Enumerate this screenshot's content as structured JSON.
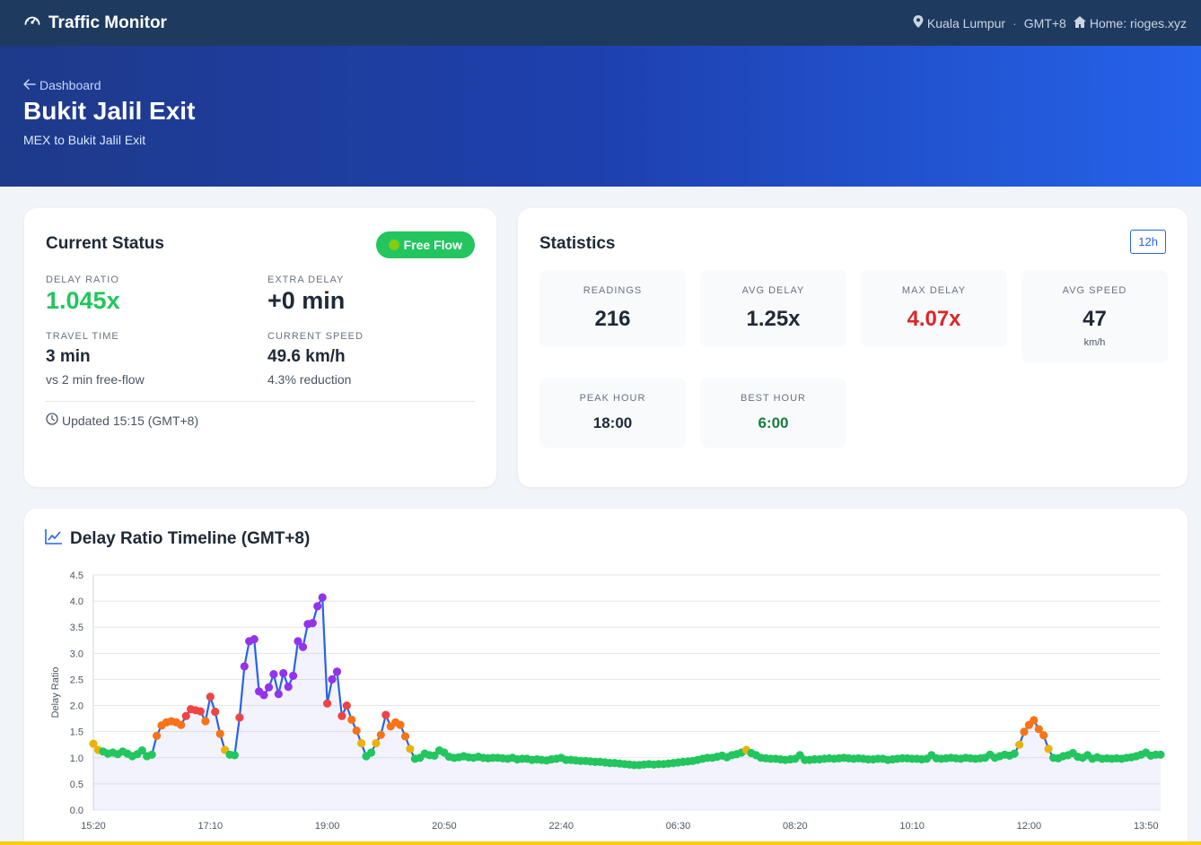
{
  "app": {
    "title": "Traffic Monitor",
    "location": "Kuala Lumpur",
    "timezone": "GMT+8",
    "home_link": "Home: rioges.xyz",
    "separator": "·"
  },
  "hero": {
    "back_label": "Dashboard",
    "title": "Bukit Jalil Exit",
    "subtitle": "MEX to Bukit Jalil Exit"
  },
  "status": {
    "title": "Current Status",
    "badge": "Free Flow",
    "delay_ratio_label": "DELAY RATIO",
    "delay_ratio": "1.045x",
    "extra_delay_label": "EXTRA DELAY",
    "extra_delay": "+0 min",
    "travel_time_label": "TRAVEL TIME",
    "travel_time": "3 min",
    "travel_time_note": "vs 2 min free-flow",
    "speed_label": "CURRENT SPEED",
    "speed": "49.6 km/h",
    "speed_note": "4.3% reduction",
    "updated": "Updated 15:15 (GMT+8)"
  },
  "stats": {
    "title": "Statistics",
    "range": "12h",
    "readings_label": "READINGS",
    "readings": "216",
    "avg_delay_label": "AVG DELAY",
    "avg_delay": "1.25x",
    "max_delay_label": "MAX DELAY",
    "max_delay": "4.07x",
    "avg_speed_label": "AVG SPEED",
    "avg_speed": "47",
    "avg_speed_unit": "km/h",
    "peak_hour_label": "PEAK HOUR",
    "peak_hour": "18:00",
    "best_hour_label": "BEST HOUR",
    "best_hour": "6:00"
  },
  "colors": {
    "free": "#22c55e",
    "light": "#eab308",
    "moderate": "#f97316",
    "heavy": "#ef4444",
    "severe": "#9333ea",
    "line": "#2563eb"
  },
  "chart_data": {
    "type": "line",
    "title": "Delay Ratio Timeline (GMT+8)",
    "ylabel": "Delay Ratio",
    "xlabel": "",
    "ylim": [
      0,
      4.5
    ],
    "yticks": [
      "0.0",
      "0.5",
      "1.0",
      "1.5",
      "2.0",
      "2.5",
      "3.0",
      "3.5",
      "4.0",
      "4.5"
    ],
    "xticks": [
      "15:20",
      "17:10",
      "19:00",
      "20:50",
      "22:40",
      "06:30",
      "08:20",
      "10:10",
      "12:00",
      "13:50"
    ],
    "grid": true,
    "legend": "none",
    "values": [
      1.27,
      1.15,
      1.12,
      1.08,
      1.1,
      1.07,
      1.12,
      1.08,
      1.03,
      1.07,
      1.14,
      1.03,
      1.06,
      1.42,
      1.62,
      1.68,
      1.7,
      1.68,
      1.63,
      1.8,
      1.93,
      1.91,
      1.89,
      1.7,
      2.17,
      1.88,
      1.46,
      1.15,
      1.06,
      1.05,
      1.77,
      2.75,
      3.23,
      3.27,
      2.27,
      2.2,
      2.35,
      2.6,
      2.22,
      2.62,
      2.36,
      2.57,
      3.23,
      3.12,
      3.56,
      3.58,
      3.9,
      4.07,
      2.04,
      2.5,
      2.65,
      1.8,
      2.0,
      1.73,
      1.52,
      1.28,
      1.03,
      1.1,
      1.28,
      1.44,
      1.82,
      1.6,
      1.68,
      1.63,
      1.41,
      1.17,
      0.98,
      1.0,
      1.08,
      1.05,
      1.04,
      1.14,
      1.1,
      1.02,
      1.0,
      1.01,
      1.03,
      1.01,
      1.0,
      1.02,
      1.0,
      0.99,
      1.0,
      1.0,
      0.99,
      0.98,
      1.0,
      0.97,
      0.98,
      0.98,
      0.96,
      0.97,
      0.96,
      0.95,
      0.97,
      0.98,
      1.0,
      0.96,
      0.96,
      0.95,
      0.94,
      0.94,
      0.93,
      0.92,
      0.92,
      0.91,
      0.9,
      0.9,
      0.89,
      0.88,
      0.87,
      0.86,
      0.86,
      0.87,
      0.88,
      0.87,
      0.88,
      0.88,
      0.89,
      0.9,
      0.91,
      0.92,
      0.93,
      0.94,
      0.96,
      0.98,
      1.0,
      1.0,
      1.02,
      1.04,
      1.01,
      1.05,
      1.07,
      1.1,
      1.15,
      1.09,
      1.05,
      1.0,
      0.99,
      0.98,
      0.98,
      0.97,
      0.96,
      0.97,
      0.98,
      1.05,
      0.96,
      0.96,
      0.97,
      0.97,
      0.98,
      0.99,
      0.98,
      0.99,
      1.0,
      0.99,
      0.98,
      0.99,
      0.98,
      0.97,
      0.97,
      0.98,
      0.98,
      0.96,
      0.97,
      0.98,
      0.99,
      0.99,
      0.98,
      0.98,
      0.97,
      0.98,
      1.05,
      0.99,
      0.98,
      0.99,
      1.0,
      0.99,
      0.98,
      1.0,
      0.99,
      0.98,
      0.99,
      1.0,
      1.06,
      1.0,
      1.03,
      1.06,
      1.04,
      1.08,
      1.25,
      1.5,
      1.63,
      1.72,
      1.55,
      1.43,
      1.17,
      1.0,
      0.99,
      1.03,
      1.05,
      1.09,
      1.02,
      1.0,
      1.05,
      0.98,
      1.01,
      0.98,
      0.99,
      0.98,
      0.99,
      0.98,
      1.0,
      1.01,
      1.03,
      1.06,
      1.1,
      1.04,
      1.06,
      1.06
    ]
  }
}
